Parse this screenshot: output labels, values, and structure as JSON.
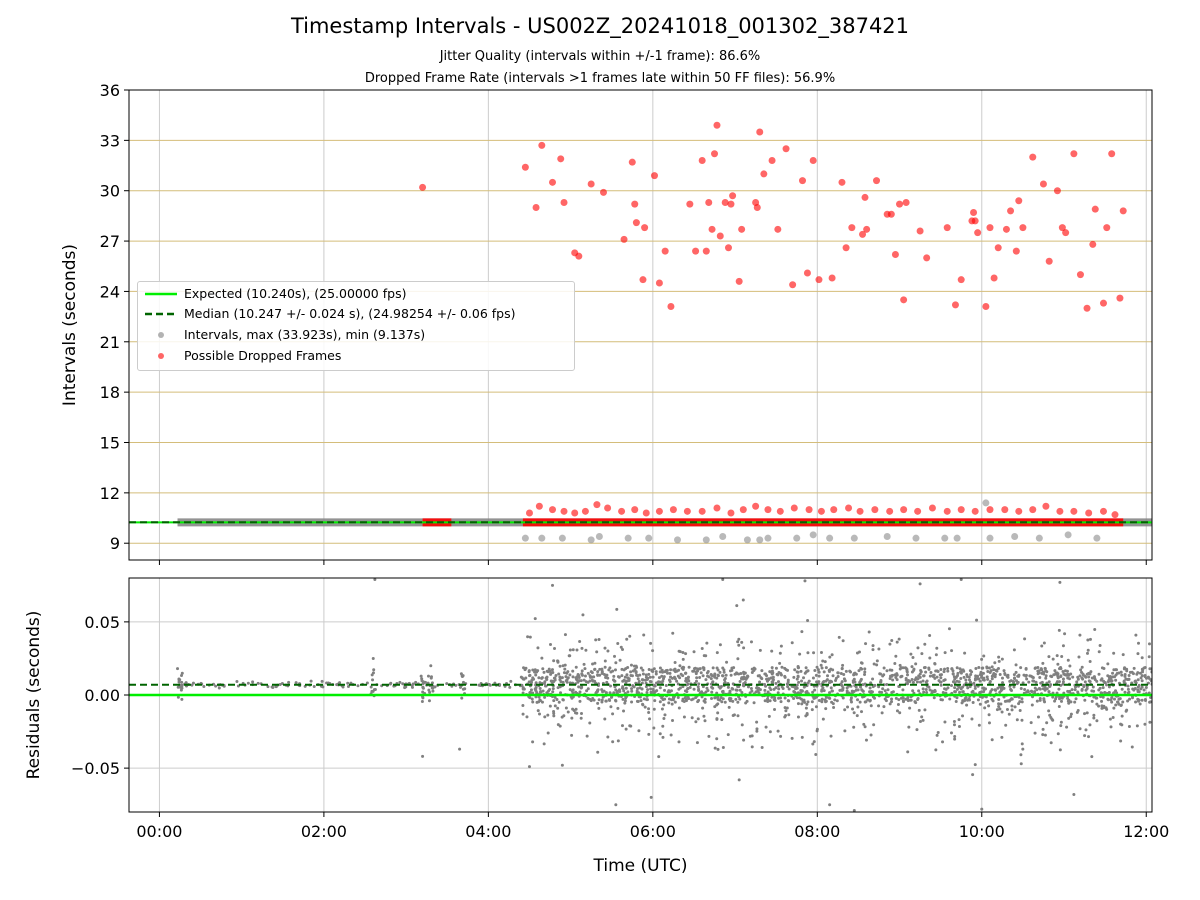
{
  "title": "Timestamp Intervals - US002Z_20241018_001302_387421",
  "subtitle_1": "Jitter Quality (intervals within +/-1 frame): 86.6%",
  "subtitle_2": "Dropped Frame Rate (intervals >1 frames late within 50 FF files): 56.9%",
  "colors": {
    "expected": "#00ee00",
    "median": "#006400",
    "intervals": "#808080",
    "dropped": "#ff0000",
    "hgrid": "#d4bd7a",
    "vgrid": "#cccccc"
  },
  "legend": {
    "expected": "Expected (10.240s), (25.00000 fps)",
    "median": "Median (10.247 +/- 0.024 s), (24.98254 +/- 0.06 fps)",
    "intervals": "Intervals, max (33.923s), min (9.137s)",
    "dropped": "Possible Dropped Frames"
  },
  "chart_data": [
    {
      "type": "scatter",
      "panel": "top",
      "xlabel": "Time (UTC)",
      "ylabel": "Intervals (seconds)",
      "xlim": [
        -0.37,
        12.07
      ],
      "ylim": [
        8.0,
        36.0
      ],
      "xticks": [
        "00:00",
        "02:00",
        "04:00",
        "06:00",
        "08:00",
        "10:00",
        "12:00"
      ],
      "yticks": [
        9,
        12,
        15,
        18,
        21,
        24,
        27,
        30,
        33,
        36
      ],
      "expected_interval": 10.24,
      "median_interval": 10.247,
      "legend_position": "center-left",
      "grid": true,
      "series": [
        {
          "name": "Intervals, max (33.923s), min (9.137s)",
          "note": "continuous band of intervals near 10.24 s from about 00:14 to 12:07",
          "band": {
            "x_start": 0.22,
            "x_end": 12.07,
            "y": 10.24
          },
          "points": [
            [
              4.45,
              9.3
            ],
            [
              4.65,
              9.3
            ],
            [
              4.9,
              9.3
            ],
            [
              5.25,
              9.2
            ],
            [
              5.35,
              9.4
            ],
            [
              5.7,
              9.3
            ],
            [
              5.95,
              9.3
            ],
            [
              6.3,
              9.2
            ],
            [
              6.65,
              9.2
            ],
            [
              6.85,
              9.4
            ],
            [
              7.15,
              9.2
            ],
            [
              7.3,
              9.2
            ],
            [
              7.4,
              9.3
            ],
            [
              7.75,
              9.3
            ],
            [
              7.95,
              9.5
            ],
            [
              8.15,
              9.3
            ],
            [
              8.45,
              9.3
            ],
            [
              8.85,
              9.4
            ],
            [
              9.2,
              9.3
            ],
            [
              9.55,
              9.3
            ],
            [
              9.7,
              9.3
            ],
            [
              10.1,
              9.3
            ],
            [
              10.4,
              9.4
            ],
            [
              10.7,
              9.3
            ],
            [
              11.05,
              9.5
            ],
            [
              11.4,
              9.3
            ],
            [
              10.05,
              11.4
            ]
          ]
        },
        {
          "name": "Possible Dropped Frames",
          "note": "dense run of dropped-frame points near 10.24 s from about 03:12 to 03:33 and 04:25 to 11:42",
          "bands": [
            {
              "x_start": 3.2,
              "x_end": 3.55,
              "y": 10.24
            },
            {
              "x_start": 4.42,
              "x_end": 11.72,
              "y": 10.24
            }
          ],
          "points": [
            [
              3.2,
              30.2
            ],
            [
              4.45,
              31.4
            ],
            [
              4.58,
              29.0
            ],
            [
              4.65,
              32.7
            ],
            [
              4.78,
              30.5
            ],
            [
              4.88,
              31.9
            ],
            [
              4.92,
              29.3
            ],
            [
              5.05,
              26.3
            ],
            [
              5.1,
              26.1
            ],
            [
              5.25,
              30.4
            ],
            [
              5.4,
              29.9
            ],
            [
              5.65,
              27.1
            ],
            [
              5.75,
              31.7
            ],
            [
              5.78,
              29.2
            ],
            [
              5.8,
              28.1
            ],
            [
              5.88,
              24.7
            ],
            [
              5.9,
              27.8
            ],
            [
              6.02,
              30.9
            ],
            [
              6.08,
              24.5
            ],
            [
              6.15,
              26.4
            ],
            [
              6.22,
              23.1
            ],
            [
              6.45,
              29.2
            ],
            [
              6.52,
              26.4
            ],
            [
              6.6,
              31.8
            ],
            [
              6.65,
              26.4
            ],
            [
              6.68,
              29.3
            ],
            [
              6.72,
              27.7
            ],
            [
              6.75,
              32.2
            ],
            [
              6.78,
              33.9
            ],
            [
              6.82,
              27.3
            ],
            [
              6.88,
              29.3
            ],
            [
              6.92,
              26.6
            ],
            [
              6.95,
              29.2
            ],
            [
              6.97,
              29.7
            ],
            [
              7.05,
              24.6
            ],
            [
              7.08,
              27.7
            ],
            [
              7.25,
              29.3
            ],
            [
              7.27,
              29.0
            ],
            [
              7.3,
              33.5
            ],
            [
              7.35,
              31.0
            ],
            [
              7.45,
              31.8
            ],
            [
              7.52,
              27.7
            ],
            [
              7.62,
              32.5
            ],
            [
              7.7,
              24.4
            ],
            [
              7.82,
              30.6
            ],
            [
              7.88,
              25.1
            ],
            [
              7.95,
              31.8
            ],
            [
              8.02,
              24.7
            ],
            [
              8.18,
              24.8
            ],
            [
              8.3,
              30.5
            ],
            [
              8.35,
              26.6
            ],
            [
              8.42,
              27.8
            ],
            [
              8.55,
              27.4
            ],
            [
              8.58,
              29.6
            ],
            [
              8.6,
              27.7
            ],
            [
              8.72,
              30.6
            ],
            [
              8.85,
              28.6
            ],
            [
              8.9,
              28.6
            ],
            [
              8.95,
              26.2
            ],
            [
              9.0,
              29.2
            ],
            [
              9.05,
              23.5
            ],
            [
              9.08,
              29.3
            ],
            [
              9.25,
              27.6
            ],
            [
              9.33,
              26.0
            ],
            [
              9.58,
              27.8
            ],
            [
              9.68,
              23.2
            ],
            [
              9.75,
              24.7
            ],
            [
              9.88,
              28.2
            ],
            [
              9.9,
              28.7
            ],
            [
              9.92,
              28.2
            ],
            [
              9.95,
              27.5
            ],
            [
              10.05,
              23.1
            ],
            [
              10.1,
              27.8
            ],
            [
              10.15,
              24.8
            ],
            [
              10.2,
              26.6
            ],
            [
              10.3,
              27.7
            ],
            [
              10.35,
              28.8
            ],
            [
              10.42,
              26.4
            ],
            [
              10.45,
              29.4
            ],
            [
              10.5,
              27.8
            ],
            [
              10.62,
              32.0
            ],
            [
              10.75,
              30.4
            ],
            [
              10.82,
              25.8
            ],
            [
              10.92,
              30.0
            ],
            [
              10.98,
              27.8
            ],
            [
              11.02,
              27.5
            ],
            [
              11.12,
              32.2
            ],
            [
              11.2,
              25.0
            ],
            [
              11.28,
              23.0
            ],
            [
              11.35,
              26.8
            ],
            [
              11.38,
              28.9
            ],
            [
              11.48,
              23.3
            ],
            [
              11.52,
              27.8
            ],
            [
              11.58,
              32.2
            ],
            [
              11.68,
              23.6
            ],
            [
              11.72,
              28.8
            ],
            [
              4.5,
              10.8
            ],
            [
              4.62,
              11.2
            ],
            [
              4.78,
              11.0
            ],
            [
              4.92,
              10.9
            ],
            [
              5.05,
              10.8
            ],
            [
              5.18,
              10.9
            ],
            [
              5.32,
              11.3
            ],
            [
              5.45,
              11.1
            ],
            [
              5.62,
              10.9
            ],
            [
              5.78,
              11.0
            ],
            [
              5.92,
              10.8
            ],
            [
              6.08,
              10.9
            ],
            [
              6.25,
              11.0
            ],
            [
              6.42,
              10.9
            ],
            [
              6.6,
              10.9
            ],
            [
              6.78,
              11.1
            ],
            [
              6.95,
              10.8
            ],
            [
              7.1,
              11.0
            ],
            [
              7.25,
              11.2
            ],
            [
              7.4,
              11.0
            ],
            [
              7.55,
              10.9
            ],
            [
              7.72,
              11.1
            ],
            [
              7.9,
              11.0
            ],
            [
              8.05,
              10.9
            ],
            [
              8.2,
              11.0
            ],
            [
              8.38,
              11.1
            ],
            [
              8.52,
              10.9
            ],
            [
              8.7,
              11.0
            ],
            [
              8.88,
              10.9
            ],
            [
              9.05,
              11.0
            ],
            [
              9.22,
              10.9
            ],
            [
              9.4,
              11.1
            ],
            [
              9.58,
              10.9
            ],
            [
              9.75,
              11.0
            ],
            [
              9.92,
              10.9
            ],
            [
              10.1,
              11.0
            ],
            [
              10.28,
              11.0
            ],
            [
              10.45,
              10.9
            ],
            [
              10.62,
              11.0
            ],
            [
              10.78,
              11.2
            ],
            [
              10.95,
              10.9
            ],
            [
              11.12,
              10.9
            ],
            [
              11.3,
              10.8
            ],
            [
              11.48,
              10.9
            ],
            [
              11.62,
              10.7
            ]
          ]
        }
      ]
    },
    {
      "type": "scatter",
      "panel": "bottom",
      "xlabel": "Time (UTC)",
      "ylabel": "Residuals (seconds)",
      "xlim": [
        -0.37,
        12.07
      ],
      "ylim": [
        -0.08,
        0.08
      ],
      "xticks": [
        "00:00",
        "02:00",
        "04:00",
        "06:00",
        "08:00",
        "10:00",
        "12:00"
      ],
      "yticks": [
        0.05,
        0.0,
        -0.05
      ],
      "ytick_labels": [
        "0.05",
        "0.00",
        "−0.05"
      ],
      "expected_residual": 0.0,
      "median_residual": 0.007,
      "grid": true,
      "series": [
        {
          "name": "Residuals",
          "note": "sparse residuals before 04:25, dense scatter from 04:25 to 12:07 roughly within -0.08 and 0.08",
          "sparse_range": {
            "x_start": 0.22,
            "x_end": 4.4,
            "y_center": 0.007
          },
          "dense_range": {
            "x_start": 4.4,
            "x_end": 12.07,
            "y_center": 0.007,
            "core_spread": 0.012
          },
          "notable_points": [
            [
              0.22,
              0.018
            ],
            [
              2.6,
              0.025
            ],
            [
              2.62,
              0.079
            ],
            [
              3.2,
              -0.042
            ],
            [
              3.65,
              -0.037
            ],
            [
              3.3,
              0.02
            ],
            [
              4.5,
              -0.049
            ],
            [
              4.78,
              0.075
            ],
            [
              4.9,
              -0.048
            ],
            [
              5.55,
              -0.075
            ],
            [
              5.98,
              -0.07
            ],
            [
              6.85,
              0.079
            ],
            [
              7.05,
              -0.058
            ],
            [
              7.1,
              0.065
            ],
            [
              7.85,
              0.078
            ],
            [
              8.15,
              -0.075
            ],
            [
              8.45,
              -0.079
            ],
            [
              9.25,
              0.076
            ],
            [
              9.75,
              0.079
            ],
            [
              10.0,
              -0.078
            ],
            [
              10.48,
              -0.047
            ],
            [
              10.95,
              0.077
            ],
            [
              11.12,
              -0.068
            ]
          ]
        }
      ]
    }
  ]
}
